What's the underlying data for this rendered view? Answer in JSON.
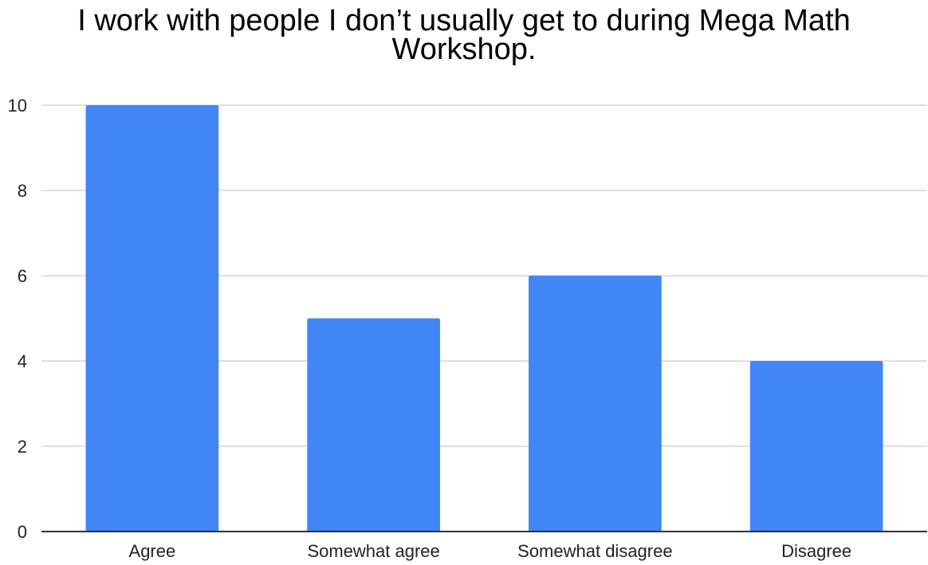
{
  "chart_data": {
    "type": "bar",
    "title_lines": [
      "I work with people I don’t usually get to during Mega Math",
      "Workshop."
    ],
    "categories": [
      "Agree",
      "Somewhat agree",
      "Somewhat disagree",
      "Disagree"
    ],
    "values": [
      10,
      5,
      6,
      4
    ],
    "ylim": [
      0,
      10
    ],
    "yticks": [
      0,
      2,
      4,
      6,
      8,
      10
    ],
    "grid": true,
    "legend": "none",
    "colors": {
      "bar": "#4285F4",
      "grid": "#cccccc",
      "axis": "#333333"
    }
  }
}
